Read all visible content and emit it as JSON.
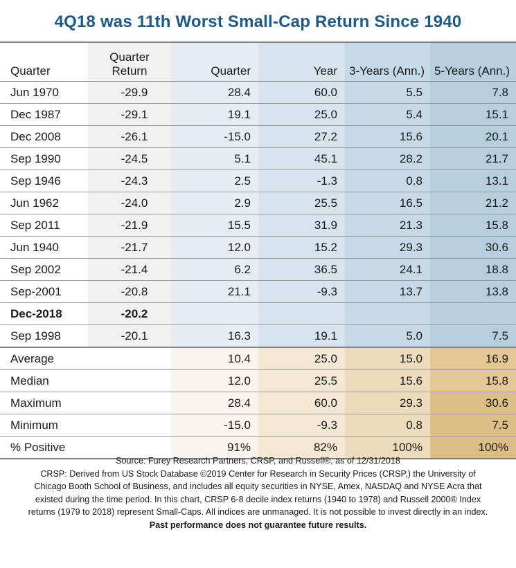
{
  "title": "4Q18 was 11th Worst Small-Cap Return Since 1940",
  "chart_data": {
    "type": "table",
    "columns": [
      "Quarter",
      "Quarter Return",
      "Quarter",
      "Year",
      "3-Years (Ann.)",
      "5-Years (Ann.)"
    ],
    "column_header_lines": [
      [
        "Quarter"
      ],
      [
        "Quarter",
        "Return"
      ],
      [
        "Quarter"
      ],
      [
        "Year"
      ],
      [
        "3-Years (Ann.)"
      ],
      [
        "5-Years (Ann.)"
      ]
    ],
    "rows": [
      [
        "Jun 1970",
        "-29.9",
        "28.4",
        "60.0",
        "5.5",
        "7.8"
      ],
      [
        "Dec 1987",
        "-29.1",
        "19.1",
        "25.0",
        "5.4",
        "15.1"
      ],
      [
        "Dec 2008",
        "-26.1",
        "-15.0",
        "27.2",
        "15.6",
        "20.1"
      ],
      [
        "Sep 1990",
        "-24.5",
        "5.1",
        "45.1",
        "28.2",
        "21.7"
      ],
      [
        "Sep 1946",
        "-24.3",
        "2.5",
        "-1.3",
        "0.8",
        "13.1"
      ],
      [
        "Jun 1962",
        "-24.0",
        "2.9",
        "25.5",
        "16.5",
        "21.2"
      ],
      [
        "Sep 2011",
        "-21.9",
        "15.5",
        "31.9",
        "21.3",
        "15.8"
      ],
      [
        "Jun 1940",
        "-21.7",
        "12.0",
        "15.2",
        "29.3",
        "30.6"
      ],
      [
        "Sep 2002",
        "-21.4",
        "6.2",
        "36.5",
        "24.1",
        "18.8"
      ],
      [
        "Sep-2001",
        "-20.8",
        "21.1",
        "-9.3",
        "13.7",
        "13.8"
      ],
      [
        "Dec-2018",
        "-20.2",
        "",
        "",
        "",
        ""
      ],
      [
        "Sep 1998",
        "-20.1",
        "16.3",
        "19.1",
        "5.0",
        "7.5"
      ]
    ],
    "highlight_row": 10,
    "summary_rows": [
      [
        "Average",
        "",
        "10.4",
        "25.0",
        "15.0",
        "16.9"
      ],
      [
        "Median",
        "",
        "12.0",
        "25.5",
        "15.6",
        "15.8"
      ],
      [
        "Maximum",
        "",
        "28.4",
        "60.0",
        "29.3",
        "30.6"
      ],
      [
        "Minimum",
        "",
        "-15.0",
        "-9.3",
        "0.8",
        "7.5"
      ],
      [
        "% Positive",
        "",
        "91%",
        "82%",
        "100%",
        "100%"
      ]
    ]
  },
  "notes": {
    "source": "Source: Furey Research Partners, CRSP, and Russell®, as of 12/31/2018",
    "lines": [
      "CRSP: Derived from US Stock Database ©2019 Center for Research in Security Prices (CRSP,) the University of",
      "Chicago Booth School of Business, and includes all equity securities in NYSE, Amex, NASDAQ and NYSE Acra that",
      "existed during the time period. In this chart, CRSP 6-8 decile index returns (1940 to 1978) and Russell 2000® Index",
      "returns (1979 to 2018) represent Small-Caps. All indices are unmanaged. It is not possible to invest directly in an index."
    ],
    "disclaimer": "Past performance does not guarantee future results."
  }
}
